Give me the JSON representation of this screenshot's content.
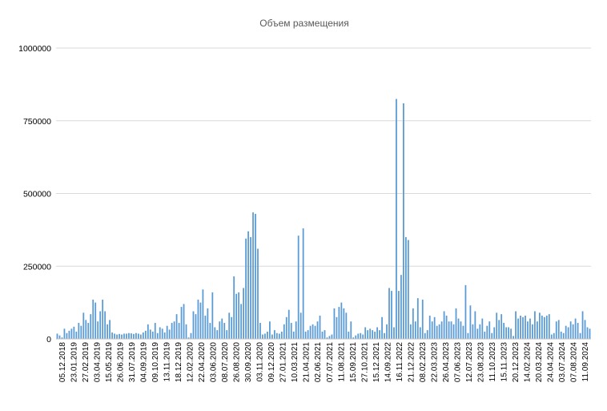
{
  "chart_data": {
    "type": "bar",
    "title": "Объем размещения",
    "xlabel": "",
    "ylabel": "",
    "ylim": [
      0,
      1000000
    ],
    "yticks": [
      0,
      250000,
      500000,
      750000,
      1000000
    ],
    "ytick_labels": [
      "0",
      "250000",
      "500000",
      "750000",
      "1000000"
    ],
    "xtick_labels": [
      "05.12.2018",
      "23.01.2019",
      "27.02.2019",
      "03.04.2019",
      "15.05.2019",
      "26.06.2019",
      "31.07.2019",
      "04.09.2019",
      "09.10.2019",
      "13.11.2019",
      "18.12.2019",
      "12.02.2020",
      "22.04.2020",
      "03.06.2020",
      "08.07.2020",
      "26.08.2020",
      "30.09.2020",
      "03.11.2020",
      "09.12.2020",
      "27.01.2021",
      "10.03.2021",
      "21.04.2021",
      "02.06.2021",
      "07.07.2021",
      "11.08.2021",
      "15.09.2021",
      "27.10.2021",
      "15.12.2021",
      "14.09.2022",
      "16.11.2022",
      "21.12.2022",
      "08.02.2023",
      "22.03.2023",
      "26.04.2023",
      "07.06.2023",
      "12.07.2023",
      "23.08.2023",
      "11.10.2023",
      "15.11.2023",
      "20.12.2023",
      "14.02.2024",
      "20.03.2024",
      "24.04.2024",
      "03.07.2024",
      "07.08.2024",
      "11.09.2024"
    ],
    "grid": true,
    "legend": "none",
    "color": "#5b9bd5",
    "values": [
      18000,
      12000,
      5000,
      35000,
      20000,
      28000,
      35000,
      42000,
      25000,
      55000,
      45000,
      90000,
      65000,
      55000,
      85000,
      135000,
      125000,
      60000,
      95000,
      135000,
      95000,
      50000,
      65000,
      22000,
      18000,
      15000,
      17000,
      15000,
      18000,
      18000,
      20000,
      19000,
      17000,
      20000,
      18000,
      15000,
      22000,
      28000,
      50000,
      32000,
      25000,
      55000,
      20000,
      40000,
      35000,
      22000,
      45000,
      32000,
      55000,
      60000,
      85000,
      55000,
      110000,
      120000,
      50000,
      5000,
      20000,
      95000,
      85000,
      135000,
      125000,
      170000,
      80000,
      105000,
      55000,
      160000,
      40000,
      30000,
      60000,
      70000,
      55000,
      30000,
      90000,
      75000,
      215000,
      155000,
      160000,
      120000,
      175000,
      345000,
      370000,
      350000,
      435000,
      430000,
      310000,
      55000,
      15000,
      18000,
      25000,
      60000,
      15000,
      30000,
      20000,
      18000,
      25000,
      50000,
      75000,
      100000,
      55000,
      25000,
      60000,
      355000,
      90000,
      380000,
      25000,
      30000,
      45000,
      50000,
      45000,
      60000,
      80000,
      25000,
      30000,
      5000,
      10000,
      15000,
      105000,
      75000,
      110000,
      125000,
      105000,
      90000,
      25000,
      60000,
      5000,
      12000,
      18000,
      20000,
      15000,
      40000,
      30000,
      35000,
      30000,
      25000,
      40000,
      30000,
      75000,
      20000,
      50000,
      175000,
      165000,
      40000,
      825000,
      165000,
      220000,
      810000,
      350000,
      340000,
      50000,
      105000,
      60000,
      140000,
      40000,
      135000,
      20000,
      30000,
      80000,
      60000,
      75000,
      45000,
      50000,
      60000,
      95000,
      80000,
      60000,
      60000,
      50000,
      105000,
      70000,
      60000,
      45000,
      185000,
      20000,
      115000,
      50000,
      95000,
      35000,
      50000,
      70000,
      25000,
      45000,
      60000,
      20000,
      40000,
      90000,
      65000,
      85000,
      55000,
      40000,
      40000,
      35000,
      10000,
      95000,
      70000,
      80000,
      75000,
      80000,
      60000,
      70000,
      50000,
      95000,
      60000,
      90000,
      80000,
      75000,
      80000,
      85000,
      15000,
      20000,
      60000,
      65000,
      25000,
      20000,
      45000,
      40000,
      60000,
      50000,
      70000,
      55000,
      20000,
      95000,
      65000,
      40000,
      35000
    ]
  }
}
